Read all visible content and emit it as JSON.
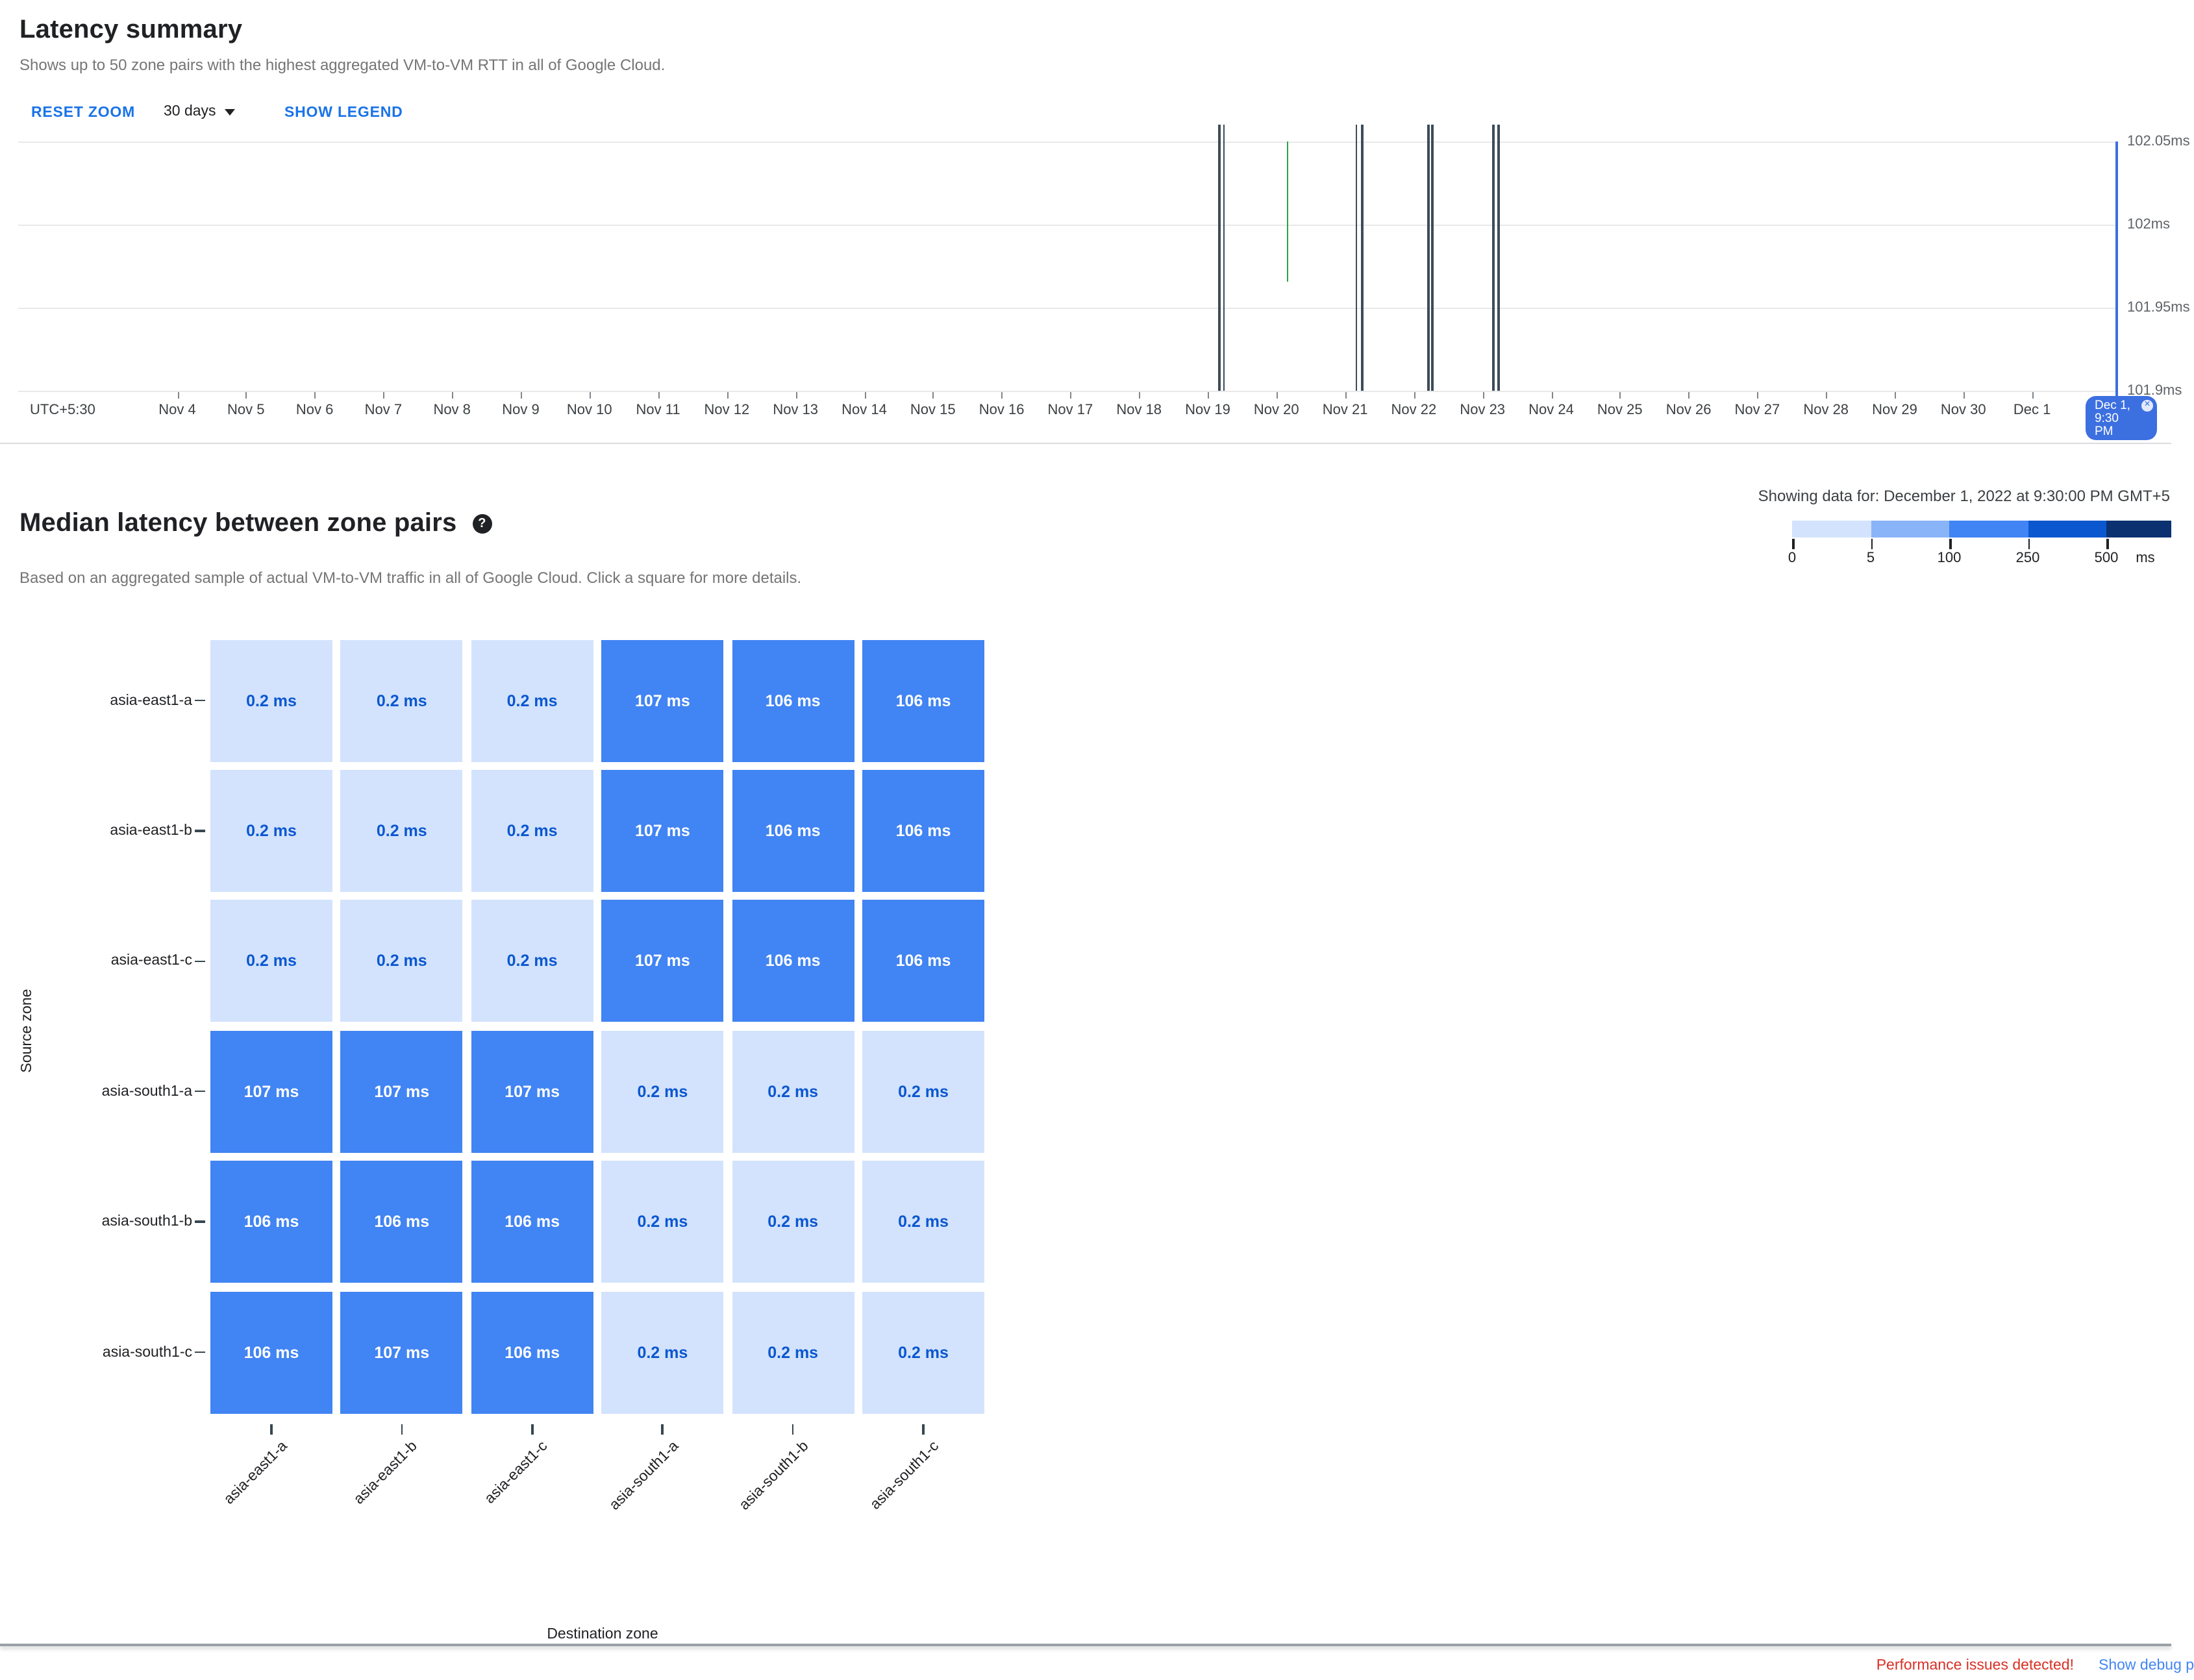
{
  "latency_summary": {
    "title": "Latency summary",
    "subtitle": "Shows up to 50 zone pairs with the highest aggregated VM-to-VM RTT in all of Google Cloud.",
    "toolbar": {
      "reset_zoom_label": "RESET ZOOM",
      "time_range_value": "30 days",
      "show_legend_label": "SHOW LEGEND"
    },
    "tooltip": {
      "line1": "Dec 1,",
      "line2": "9:30",
      "line3": "PM",
      "close_glyph": "✕"
    }
  },
  "heatmap_section": {
    "title": "Median latency between zone pairs",
    "help_icon_glyph": "?",
    "subtitle": "Based on an aggregated sample of actual VM-to-VM traffic in all of Google Cloud. Click a square for more details.",
    "showing_note": "Showing data for: December 1, 2022 at 9:30:00 PM GMT+5"
  },
  "footer": {
    "warning": "Performance issues detected!",
    "debug_link": "Show debug p"
  },
  "chart_data": [
    {
      "type": "line",
      "title": "Latency summary",
      "timezone_label": "UTC+5:30",
      "x_ticks": [
        "Nov 4",
        "Nov 5",
        "Nov 6",
        "Nov 7",
        "Nov 8",
        "Nov 9",
        "Nov 10",
        "Nov 11",
        "Nov 12",
        "Nov 13",
        "Nov 14",
        "Nov 15",
        "Nov 16",
        "Nov 17",
        "Nov 18",
        "Nov 19",
        "Nov 20",
        "Nov 21",
        "Nov 22",
        "Nov 23",
        "Nov 24",
        "Nov 25",
        "Nov 26",
        "Nov 27",
        "Nov 28",
        "Nov 29",
        "Nov 30",
        "Dec 1"
      ],
      "y_ticks": [
        "102.05ms",
        "102ms",
        "101.95ms",
        "101.9ms"
      ],
      "y_values": [
        102.05,
        102,
        101.95,
        101.9
      ],
      "ylim": [
        101.9,
        102.05
      ],
      "grid": true,
      "selected_time": "Dec 1, 9:30 PM",
      "event_colors": {
        "incident": "#3e4c59",
        "recovery": "#2ca24c",
        "selection": "#3c6fe0"
      },
      "events": [
        {
          "day": 15.17,
          "kind": "incident",
          "top": -0.07,
          "bottom": 1
        },
        {
          "day": 15.24,
          "kind": "incident",
          "top": -0.07,
          "bottom": 1
        },
        {
          "day": 16.16,
          "kind": "recovery",
          "top": 0,
          "bottom": 0.565
        },
        {
          "day": 17.16,
          "kind": "incident",
          "top": -0.07,
          "bottom": 1
        },
        {
          "day": 17.25,
          "kind": "incident",
          "top": -0.07,
          "bottom": 1
        },
        {
          "day": 18.21,
          "kind": "incident",
          "top": -0.07,
          "bottom": 1
        },
        {
          "day": 18.27,
          "kind": "incident",
          "top": -0.07,
          "bottom": 1
        },
        {
          "day": 19.16,
          "kind": "incident",
          "top": -0.07,
          "bottom": 1
        },
        {
          "day": 19.23,
          "kind": "incident",
          "top": -0.07,
          "bottom": 1
        },
        {
          "day": 28.23,
          "kind": "selection",
          "top": 0,
          "bottom": 1.02
        }
      ]
    },
    {
      "type": "heatmap",
      "title": "Median latency between zone pairs",
      "xlabel": "Destination zone",
      "ylabel": "Source zone",
      "x_categories": [
        "asia-east1-a",
        "asia-east1-b",
        "asia-east1-c",
        "asia-south1-a",
        "asia-south1-b",
        "asia-south1-c"
      ],
      "y_categories": [
        "asia-east1-a",
        "asia-east1-b",
        "asia-east1-c",
        "asia-south1-a",
        "asia-south1-b",
        "asia-south1-c"
      ],
      "unit": "ms",
      "values_ms": [
        [
          0.2,
          0.2,
          0.2,
          107,
          106,
          106
        ],
        [
          0.2,
          0.2,
          0.2,
          107,
          106,
          106
        ],
        [
          0.2,
          0.2,
          0.2,
          107,
          106,
          106
        ],
        [
          107,
          107,
          107,
          0.2,
          0.2,
          0.2
        ],
        [
          106,
          106,
          106,
          0.2,
          0.2,
          0.2
        ],
        [
          106,
          107,
          106,
          0.2,
          0.2,
          0.2
        ]
      ],
      "legend": {
        "stops": [
          0,
          5,
          100,
          250,
          500
        ],
        "unit": "ms",
        "colors": [
          "#d3e3fd",
          "#8ab4f8",
          "#4184f3",
          "#0b57d0",
          "#0b3171"
        ]
      },
      "cell_text_colors": {
        "low": "#0b57d0",
        "high": "#ffffff"
      }
    }
  ]
}
